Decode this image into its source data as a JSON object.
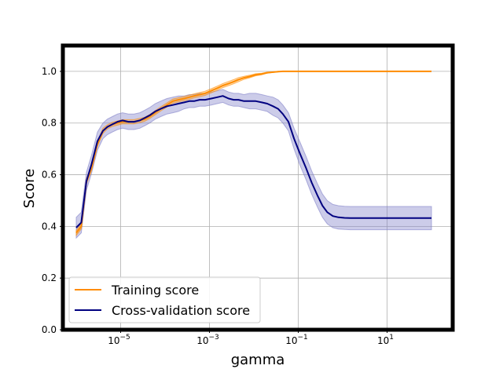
{
  "chart_data": {
    "type": "line",
    "xlabel": "gamma",
    "ylabel": "Score",
    "xscale": "log",
    "xlim": [
      5e-07,
      300
    ],
    "ylim": [
      0.0,
      1.1
    ],
    "grid": true,
    "legend_position": "lower-left",
    "x_ticks": [
      {
        "value": 1e-05,
        "base": "10",
        "exp": "−5"
      },
      {
        "value": 0.001,
        "base": "10",
        "exp": "−3"
      },
      {
        "value": 0.1,
        "base": "10",
        "exp": "−1"
      },
      {
        "value": 10,
        "base": "10",
        "exp": "1"
      }
    ],
    "y_ticks": [
      "0.0",
      "0.2",
      "0.4",
      "0.6",
      "0.8",
      "1.0"
    ],
    "x": [
      1e-06,
      1.3e-06,
      1.7e-06,
      2.2e-06,
      3e-06,
      4e-06,
      5e-06,
      6.5e-06,
      8.5e-06,
      1.1e-05,
      1.5e-05,
      2e-05,
      2.7e-05,
      3.5e-05,
      4.5e-05,
      6e-05,
      8e-05,
      0.00011,
      0.00015,
      0.0002,
      0.00027,
      0.00035,
      0.00045,
      0.0006,
      0.0008,
      0.0011,
      0.0015,
      0.002,
      0.0027,
      0.0035,
      0.0045,
      0.006,
      0.008,
      0.011,
      0.015,
      0.02,
      0.027,
      0.035,
      0.045,
      0.06,
      0.08,
      0.11,
      0.15,
      0.2,
      0.27,
      0.35,
      0.45,
      0.6,
      0.8,
      1.1,
      1.5,
      2,
      2.7,
      3.5,
      4.5,
      6,
      8,
      11,
      15,
      20,
      30,
      50,
      100
    ],
    "series": [
      {
        "name": "Training score",
        "color": "#ff8c00",
        "values": [
          0.375,
          0.4,
          0.575,
          0.625,
          0.72,
          0.77,
          0.785,
          0.795,
          0.8,
          0.805,
          0.805,
          0.805,
          0.81,
          0.815,
          0.825,
          0.84,
          0.855,
          0.87,
          0.885,
          0.89,
          0.895,
          0.9,
          0.905,
          0.91,
          0.915,
          0.925,
          0.935,
          0.945,
          0.953,
          0.96,
          0.968,
          0.975,
          0.98,
          0.987,
          0.99,
          0.995,
          0.997,
          0.999,
          1.0,
          1.0,
          1.0,
          1.0,
          1.0,
          1.0,
          1.0,
          1.0,
          1.0,
          1.0,
          1.0,
          1.0,
          1.0,
          1.0,
          1.0,
          1.0,
          1.0,
          1.0,
          1.0,
          1.0,
          1.0,
          1.0,
          1.0,
          1.0,
          1.0
        ],
        "band": [
          0.01,
          0.01,
          0.01,
          0.01,
          0.01,
          0.01,
          0.008,
          0.008,
          0.008,
          0.008,
          0.008,
          0.008,
          0.008,
          0.008,
          0.008,
          0.008,
          0.008,
          0.008,
          0.008,
          0.008,
          0.008,
          0.008,
          0.008,
          0.008,
          0.008,
          0.008,
          0.008,
          0.008,
          0.008,
          0.008,
          0.008,
          0.006,
          0.005,
          0.004,
          0.003,
          0.002,
          0.001,
          0.001,
          0.0,
          0.0,
          0.0,
          0.0,
          0.0,
          0.0,
          0.0,
          0.0,
          0.0,
          0.0,
          0.0,
          0.0,
          0.0,
          0.0,
          0.0,
          0.0,
          0.0,
          0.0,
          0.0,
          0.0,
          0.0,
          0.0,
          0.0,
          0.0,
          0.0
        ]
      },
      {
        "name": "Cross-validation score",
        "color": "#000080",
        "band_color": "#8080c8",
        "values": [
          0.395,
          0.415,
          0.575,
          0.64,
          0.73,
          0.77,
          0.785,
          0.795,
          0.805,
          0.81,
          0.805,
          0.805,
          0.81,
          0.82,
          0.83,
          0.845,
          0.855,
          0.865,
          0.87,
          0.875,
          0.88,
          0.885,
          0.885,
          0.89,
          0.89,
          0.895,
          0.9,
          0.905,
          0.895,
          0.89,
          0.89,
          0.885,
          0.885,
          0.885,
          0.88,
          0.875,
          0.865,
          0.855,
          0.835,
          0.805,
          0.74,
          0.68,
          0.625,
          0.57,
          0.52,
          0.48,
          0.455,
          0.44,
          0.435,
          0.433,
          0.432,
          0.432,
          0.432,
          0.432,
          0.432,
          0.432,
          0.432,
          0.432,
          0.432,
          0.432,
          0.432,
          0.432,
          0.432
        ],
        "band": [
          0.04,
          0.04,
          0.035,
          0.035,
          0.035,
          0.03,
          0.03,
          0.03,
          0.03,
          0.03,
          0.03,
          0.03,
          0.03,
          0.03,
          0.03,
          0.03,
          0.03,
          0.03,
          0.03,
          0.03,
          0.025,
          0.025,
          0.025,
          0.025,
          0.025,
          0.025,
          0.025,
          0.025,
          0.025,
          0.025,
          0.025,
          0.025,
          0.03,
          0.03,
          0.03,
          0.03,
          0.035,
          0.035,
          0.035,
          0.035,
          0.04,
          0.045,
          0.045,
          0.045,
          0.045,
          0.045,
          0.045,
          0.045,
          0.045,
          0.045,
          0.045,
          0.045,
          0.045,
          0.045,
          0.045,
          0.045,
          0.045,
          0.045,
          0.045,
          0.045,
          0.045,
          0.045,
          0.045
        ]
      }
    ]
  }
}
